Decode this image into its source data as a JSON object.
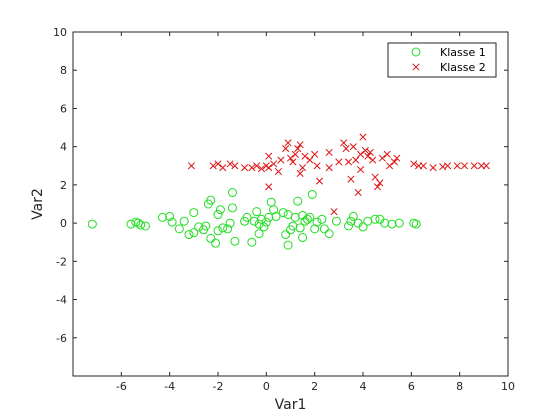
{
  "chart_data": {
    "type": "scatter",
    "xlabel": "Var1",
    "ylabel": "Var2",
    "xlim": [
      -8,
      10
    ],
    "ylim": [
      -8,
      10
    ],
    "xticks": [
      -6,
      -4,
      -2,
      0,
      2,
      4,
      6,
      8,
      10
    ],
    "yticks": [
      -6,
      -4,
      -2,
      0,
      2,
      4,
      6,
      8,
      10
    ],
    "grid": false,
    "legend_position": "top-right",
    "series": [
      {
        "name": "Klasse 1",
        "marker": "circle",
        "color": "#22dd22",
        "points": [
          [
            -7.2,
            -0.05
          ],
          [
            -5.6,
            -0.05
          ],
          [
            -5.4,
            0.05
          ],
          [
            -5.3,
            0.0
          ],
          [
            -5.2,
            -0.1
          ],
          [
            -5.0,
            -0.15
          ],
          [
            -4.3,
            0.3
          ],
          [
            -4.0,
            0.35
          ],
          [
            -3.9,
            0.05
          ],
          [
            -3.6,
            -0.3
          ],
          [
            -3.4,
            0.1
          ],
          [
            -3.2,
            -0.6
          ],
          [
            -3.0,
            -0.5
          ],
          [
            -3.0,
            0.55
          ],
          [
            -2.8,
            -0.2
          ],
          [
            -2.6,
            -0.35
          ],
          [
            -2.5,
            -0.15
          ],
          [
            -2.4,
            1.0
          ],
          [
            -2.3,
            1.2
          ],
          [
            -2.3,
            -0.8
          ],
          [
            -2.1,
            -1.05
          ],
          [
            -2.0,
            -0.4
          ],
          [
            -2.0,
            0.45
          ],
          [
            -1.9,
            0.7
          ],
          [
            -1.8,
            -0.25
          ],
          [
            -1.6,
            -0.3
          ],
          [
            -1.5,
            0.0
          ],
          [
            -1.4,
            1.6
          ],
          [
            -1.4,
            0.8
          ],
          [
            -1.3,
            -0.95
          ],
          [
            -0.9,
            0.1
          ],
          [
            -0.8,
            0.3
          ],
          [
            -0.6,
            -1.0
          ],
          [
            -0.5,
            0.1
          ],
          [
            -0.4,
            0.6
          ],
          [
            -0.3,
            -0.05
          ],
          [
            -0.3,
            -0.55
          ],
          [
            -0.2,
            0.2
          ],
          [
            -0.1,
            -0.2
          ],
          [
            0.0,
            0.05
          ],
          [
            0.1,
            0.3
          ],
          [
            0.2,
            1.1
          ],
          [
            0.3,
            0.7
          ],
          [
            0.4,
            0.35
          ],
          [
            0.7,
            0.55
          ],
          [
            0.8,
            -0.6
          ],
          [
            0.9,
            -1.15
          ],
          [
            0.9,
            0.45
          ],
          [
            1.0,
            -0.35
          ],
          [
            1.1,
            -0.15
          ],
          [
            1.2,
            0.3
          ],
          [
            1.3,
            1.15
          ],
          [
            1.4,
            -0.25
          ],
          [
            1.5,
            -0.75
          ],
          [
            1.5,
            0.4
          ],
          [
            1.6,
            0.1
          ],
          [
            1.7,
            0.2
          ],
          [
            1.8,
            0.3
          ],
          [
            1.9,
            1.5
          ],
          [
            2.0,
            -0.3
          ],
          [
            2.1,
            0.05
          ],
          [
            2.3,
            0.2
          ],
          [
            2.4,
            -0.3
          ],
          [
            2.6,
            -0.55
          ],
          [
            2.9,
            0.1
          ],
          [
            3.4,
            -0.15
          ],
          [
            3.5,
            0.1
          ],
          [
            3.6,
            0.35
          ],
          [
            3.8,
            0.0
          ],
          [
            4.0,
            -0.2
          ],
          [
            4.2,
            0.1
          ],
          [
            4.5,
            0.2
          ],
          [
            4.7,
            0.2
          ],
          [
            4.9,
            0.0
          ],
          [
            5.2,
            -0.05
          ],
          [
            5.5,
            0.0
          ],
          [
            6.1,
            0.0
          ],
          [
            6.2,
            -0.05
          ]
        ]
      },
      {
        "name": "Klasse 2",
        "marker": "x",
        "color": "#dd1111",
        "points": [
          [
            -3.1,
            3.0
          ],
          [
            -2.2,
            3.0
          ],
          [
            -2.0,
            3.1
          ],
          [
            -1.8,
            2.9
          ],
          [
            -1.5,
            3.1
          ],
          [
            -1.3,
            3.0
          ],
          [
            -0.9,
            2.9
          ],
          [
            -0.6,
            2.9
          ],
          [
            -0.4,
            3.0
          ],
          [
            -0.2,
            2.85
          ],
          [
            0.0,
            3.0
          ],
          [
            0.1,
            2.9
          ],
          [
            0.1,
            3.5
          ],
          [
            0.1,
            1.9
          ],
          [
            0.3,
            3.1
          ],
          [
            0.5,
            2.7
          ],
          [
            0.6,
            3.3
          ],
          [
            0.8,
            3.9
          ],
          [
            0.9,
            4.2
          ],
          [
            1.0,
            3.4
          ],
          [
            1.1,
            3.2
          ],
          [
            1.2,
            3.6
          ],
          [
            1.3,
            3.9
          ],
          [
            1.4,
            4.1
          ],
          [
            1.4,
            2.6
          ],
          [
            1.5,
            2.9
          ],
          [
            1.6,
            3.5
          ],
          [
            1.8,
            3.3
          ],
          [
            2.0,
            3.6
          ],
          [
            2.1,
            3.0
          ],
          [
            2.2,
            2.2
          ],
          [
            2.6,
            3.7
          ],
          [
            2.6,
            2.9
          ],
          [
            2.8,
            0.6
          ],
          [
            3.0,
            3.2
          ],
          [
            3.2,
            4.2
          ],
          [
            3.3,
            3.9
          ],
          [
            3.4,
            3.2
          ],
          [
            3.5,
            2.3
          ],
          [
            3.6,
            4.0
          ],
          [
            3.7,
            3.3
          ],
          [
            3.8,
            1.6
          ],
          [
            3.9,
            3.6
          ],
          [
            3.9,
            2.8
          ],
          [
            4.0,
            4.5
          ],
          [
            4.1,
            3.8
          ],
          [
            4.2,
            3.5
          ],
          [
            4.3,
            3.7
          ],
          [
            4.4,
            3.3
          ],
          [
            4.5,
            2.4
          ],
          [
            4.6,
            1.9
          ],
          [
            4.7,
            2.1
          ],
          [
            4.8,
            3.4
          ],
          [
            5.0,
            3.6
          ],
          [
            5.1,
            3.0
          ],
          [
            5.3,
            3.2
          ],
          [
            5.4,
            3.4
          ],
          [
            6.1,
            3.1
          ],
          [
            6.3,
            3.0
          ],
          [
            6.5,
            3.0
          ],
          [
            6.9,
            2.9
          ],
          [
            7.3,
            2.95
          ],
          [
            7.5,
            3.0
          ],
          [
            7.9,
            3.0
          ],
          [
            8.2,
            3.0
          ],
          [
            8.6,
            3.0
          ],
          [
            8.9,
            3.0
          ],
          [
            9.1,
            3.0
          ]
        ]
      }
    ]
  }
}
